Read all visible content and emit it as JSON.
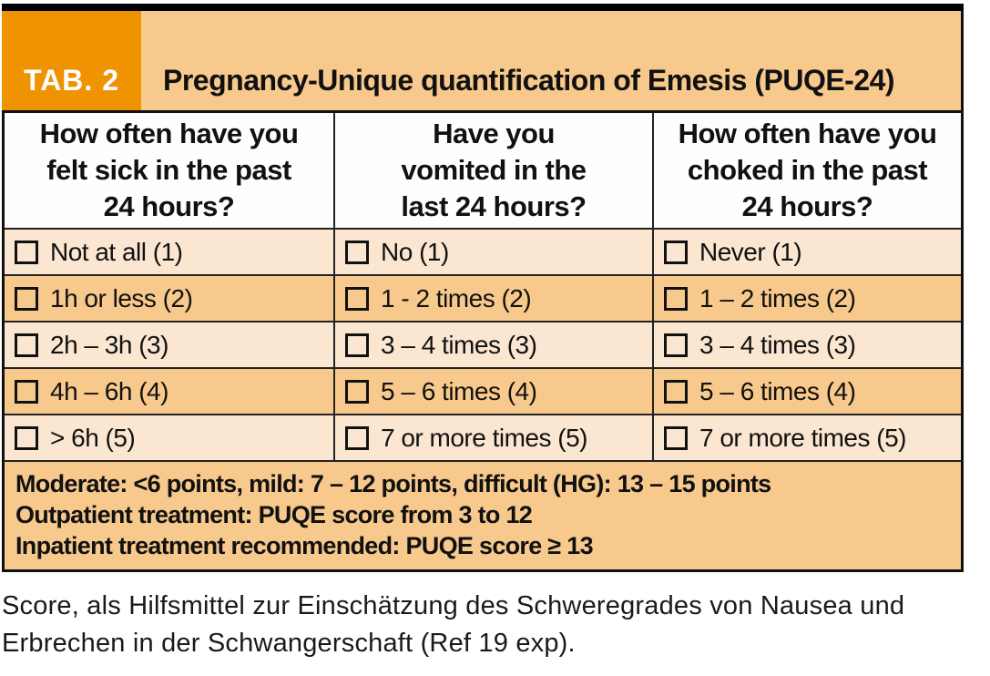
{
  "figure": {
    "tab_label": "TAB. 2",
    "title": "Pregnancy-Unique quantification of Emesis (PUQE-24)"
  },
  "colors": {
    "accent_orange": "#F09300",
    "band_orange": "#F8C98C",
    "band_cream": "#FBE7D1",
    "border_black": "#111111"
  },
  "table": {
    "columns": [
      {
        "header_lines": [
          "How often have you",
          "felt sick in the past",
          "24 hours?"
        ]
      },
      {
        "header_lines": [
          "Have you",
          "vomited in the",
          "last 24 hours?"
        ]
      },
      {
        "header_lines": [
          "How often have you",
          "choked in the past",
          "24 hours?"
        ]
      }
    ],
    "rows": [
      {
        "cells": [
          "Not at all (1)",
          "No (1)",
          "Never (1)"
        ]
      },
      {
        "cells": [
          "1h or less (2)",
          "1 - 2 times (2)",
          "1 – 2 times (2)"
        ]
      },
      {
        "cells": [
          "2h – 3h (3)",
          "3 – 4 times (3)",
          "3 – 4 times (3)"
        ]
      },
      {
        "cells": [
          "4h – 6h (4)",
          "5 – 6 times (4)",
          "5 – 6 times (4)"
        ]
      },
      {
        "cells": [
          "> 6h (5)",
          "7 or more times (5)",
          "7 or more times (5)"
        ]
      }
    ],
    "scoring_notes": [
      "Moderate: <6 points, mild: 7 – 12 points, difficult (HG): 13 – 15 points",
      "Outpatient treatment: PUQE score from 3 to 12",
      "Inpatient treatment recommended: PUQE score ≥ 13"
    ]
  },
  "caption_lines": [
    "Score, als Hilfsmittel zur Einschätzung des Schweregrades von Nausea und",
    "Erbrechen in der Schwangerschaft (Ref 19 exp)."
  ]
}
